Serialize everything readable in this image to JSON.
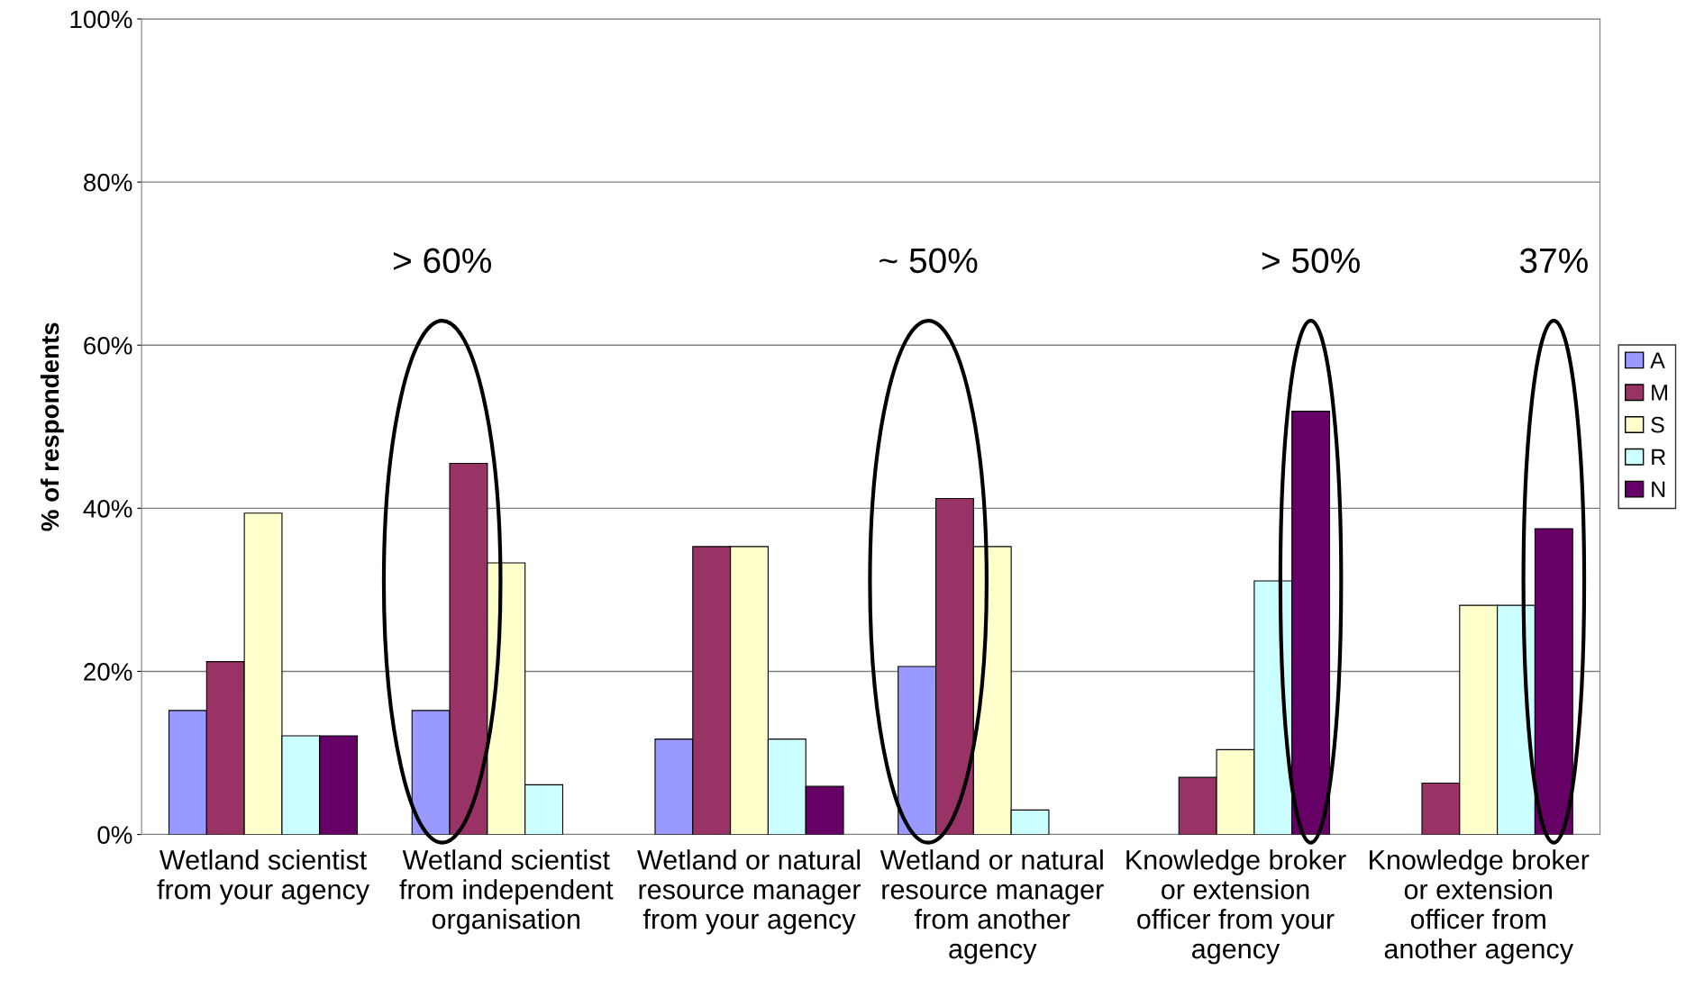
{
  "chart_data": {
    "type": "bar",
    "categories": [
      "Wetland scientist\nfrom your agency",
      "Wetland scientist\nfrom independent\norganisation",
      "Wetland or natural\nresource manager\nfrom your agency",
      "Wetland or natural\nresource manager\nfrom another\nagency",
      "Knowledge broker\nor extension\nofficer from your\nagency",
      "Knowledge broker\nor extension\nofficer from\nanother agency"
    ],
    "series": [
      {
        "name": "A",
        "color": "#9999ff",
        "values": [
          15.2,
          15.2,
          11.7,
          20.6,
          null,
          null
        ]
      },
      {
        "name": "M",
        "color": "#993366",
        "values": [
          21.2,
          45.5,
          35.3,
          41.2,
          7.0,
          6.3
        ]
      },
      {
        "name": "S",
        "color": "#ffffcc",
        "values": [
          39.4,
          33.3,
          35.3,
          35.3,
          10.4,
          28.1
        ]
      },
      {
        "name": "R",
        "color": "#ccffff",
        "values": [
          12.1,
          6.1,
          11.7,
          3.0,
          31.1,
          28.1
        ]
      },
      {
        "name": "N",
        "color": "#660066",
        "values": [
          12.1,
          null,
          5.9,
          null,
          51.9,
          37.5
        ]
      }
    ],
    "ylabel": "% of respondents",
    "ylim": [
      0,
      100
    ],
    "yticks": [
      {
        "value": 0,
        "label": "0%"
      },
      {
        "value": 20,
        "label": "20%"
      },
      {
        "value": 40,
        "label": "40%"
      },
      {
        "value": 60,
        "label": "60%"
      },
      {
        "value": 80,
        "label": "80%"
      },
      {
        "value": 100,
        "label": "100%"
      }
    ],
    "grid": "y",
    "legend": "right",
    "annotations": [
      "> 60%",
      "~ 50%",
      "> 50%",
      "37%"
    ]
  }
}
